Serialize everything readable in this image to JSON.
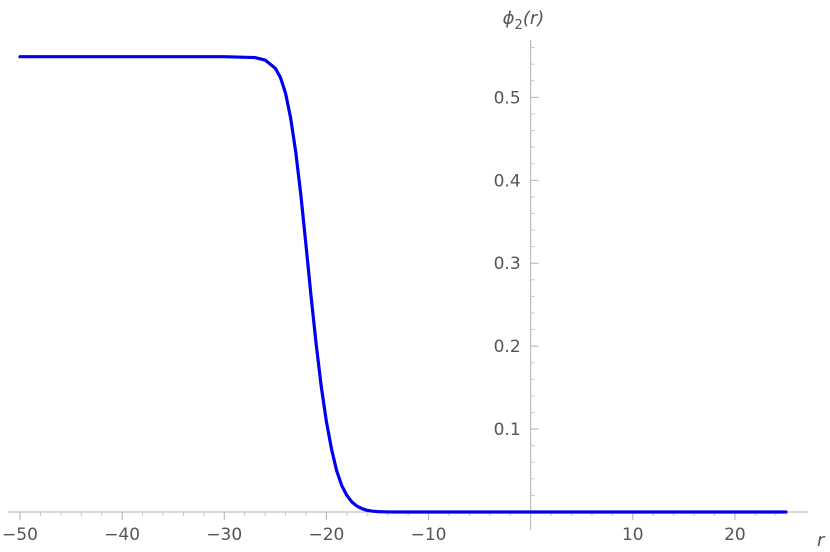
{
  "chart_data": {
    "type": "line",
    "title": "",
    "xlabel": "r",
    "ylabel": "ϕ2(r)",
    "ylabel_parts": {
      "base": "ϕ",
      "sub": "2",
      "rest": "(r)"
    },
    "xlim": [
      -50,
      25
    ],
    "ylim": [
      0,
      0.58
    ],
    "x_ticks": [
      -50,
      -40,
      -30,
      -20,
      -10,
      10,
      20
    ],
    "x_tick_labels": [
      "−50",
      "−40",
      "−30",
      "−20",
      "−10",
      "10",
      "20"
    ],
    "y_ticks": [
      0.1,
      0.2,
      0.3,
      0.4,
      0.5
    ],
    "y_tick_labels": [
      "0.1",
      "0.2",
      "0.3",
      "0.4",
      "0.5"
    ],
    "grid": false,
    "series": [
      {
        "color": "#0000ee",
        "x": [
          -50,
          -40,
          -30,
          -27,
          -26,
          -25,
          -24.5,
          -24,
          -23.5,
          -23,
          -22.5,
          -22,
          -21.5,
          -21,
          -20.5,
          -20,
          -19.5,
          -19,
          -18.5,
          -18,
          -17.5,
          -17,
          -16.5,
          -16,
          -15.5,
          -15,
          -14,
          -12,
          -10,
          0,
          10,
          25
        ],
        "y": [
          0.549,
          0.549,
          0.549,
          0.548,
          0.545,
          0.535,
          0.524,
          0.505,
          0.475,
          0.434,
          0.382,
          0.322,
          0.26,
          0.202,
          0.151,
          0.109,
          0.076,
          0.05,
          0.032,
          0.02,
          0.012,
          0.007,
          0.004,
          0.002,
          0.001,
          0.0005,
          0.0001,
          0,
          0,
          0,
          0,
          0
        ]
      }
    ]
  }
}
